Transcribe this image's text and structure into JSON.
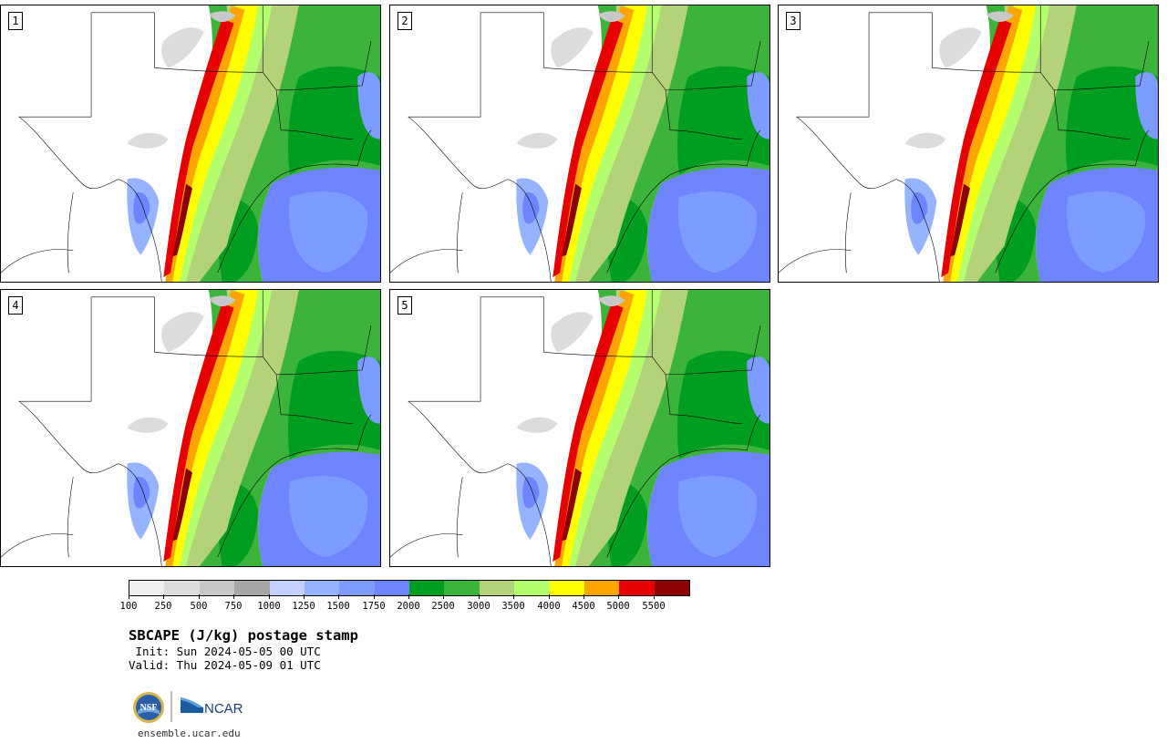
{
  "panels": [
    {
      "label": "1"
    },
    {
      "label": "2"
    },
    {
      "label": "3"
    },
    {
      "label": "4"
    },
    {
      "label": "5"
    }
  ],
  "legend": {
    "colors": [
      "#f0f0f0",
      "#dcdcdc",
      "#c8c8c8",
      "#a6a6a6",
      "#c4d0ff",
      "#95b3ff",
      "#7d9cff",
      "#6f84ff",
      "#009e20",
      "#3cb43c",
      "#b4d27a",
      "#b4ff6e",
      "#ffff00",
      "#ffa500",
      "#e60000",
      "#8b0000"
    ],
    "ticks": [
      "100",
      "250",
      "500",
      "750",
      "1000",
      "1250",
      "1500",
      "1750",
      "2000",
      "2500",
      "3000",
      "3500",
      "4000",
      "4500",
      "5000",
      "5500"
    ]
  },
  "title": "SBCAPE (J/kg) postage stamp",
  "init": " Init: Sun 2024-05-05 00 UTC",
  "valid": "Valid: Thu 2024-05-09 01 UTC",
  "logos": {
    "nsf": "NSF",
    "ncar": "NCAR"
  },
  "site": "ensemble.ucar.edu"
}
